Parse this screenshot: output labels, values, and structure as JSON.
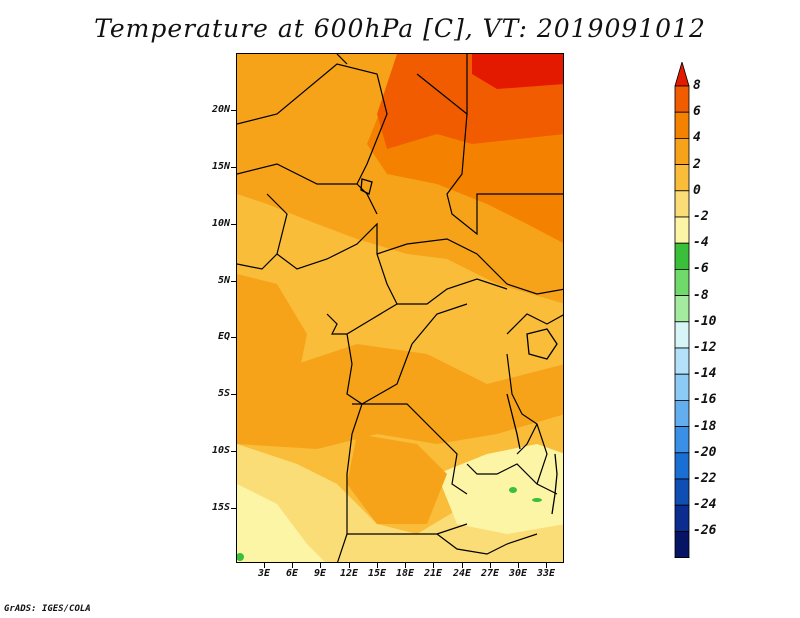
{
  "title": "Temperature at 600hPa [C], VT: 2019091012",
  "footer": "GrADS: IGES/COLA",
  "map": {
    "lat_labels": [
      "20N",
      "15N",
      "10N",
      "5N",
      "EQ",
      "5S",
      "10S",
      "15S"
    ],
    "lon_labels": [
      "3E",
      "6E",
      "9E",
      "12E",
      "15E",
      "18E",
      "21E",
      "24E",
      "27E",
      "30E",
      "33E"
    ]
  },
  "colorbar": {
    "labels": [
      "8",
      "6",
      "4",
      "2",
      "0",
      "-2",
      "-4",
      "-6",
      "-8",
      "-10",
      "-12",
      "-14",
      "-16",
      "-18",
      "-20",
      "-22",
      "-24",
      "-26"
    ],
    "colors": [
      "#e41a00",
      "#f25c00",
      "#f48200",
      "#f7a31a",
      "#f9bd3a",
      "#fbdd78",
      "#fdf5a6",
      "#39bf3a",
      "#6fda6a",
      "#a4eba0",
      "#d7f4f6",
      "#b2e1f9",
      "#8ccbf5",
      "#62aeee",
      "#3a8fe6",
      "#1a6fd4",
      "#0f4fb3",
      "#0a2d8f",
      "#061466",
      "#dcd6f2"
    ]
  }
}
